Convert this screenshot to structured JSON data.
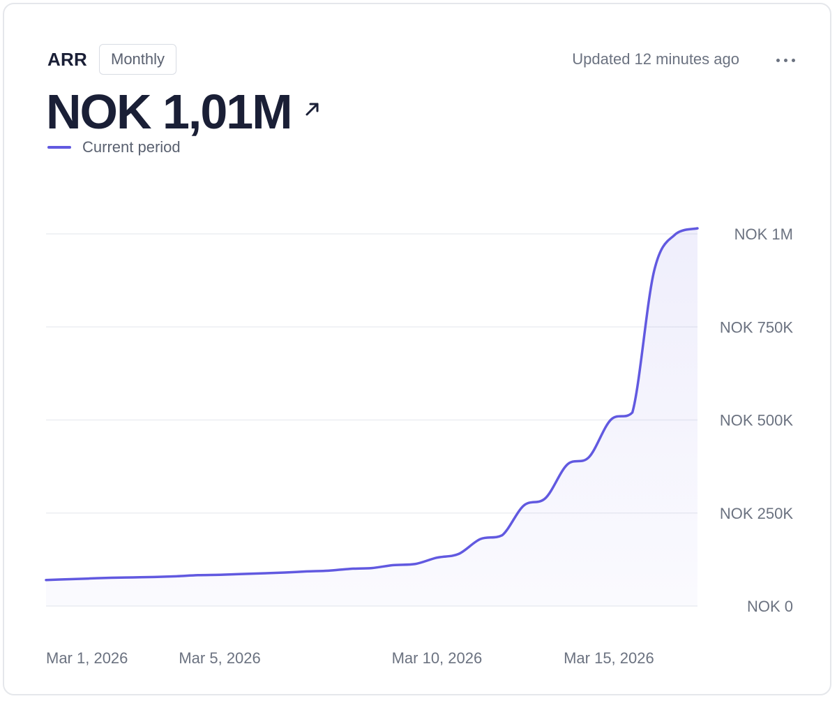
{
  "header": {
    "metric_name": "ARR",
    "period_label": "Monthly",
    "updated_text": "Updated 12 minutes ago",
    "headline_value": "NOK 1,01M",
    "trend_icon": "arrow-up-right-icon",
    "more_icon": "more-horizontal-icon"
  },
  "legend": {
    "label": "Current period",
    "color": "#6159e0"
  },
  "chart_data": {
    "type": "area",
    "series": [
      {
        "name": "Current period",
        "color": "#6159e0",
        "points": [
          [
            "2026-03-01",
            70000
          ],
          [
            "2026-03-01T12",
            72000
          ],
          [
            "2026-03-02",
            74000
          ],
          [
            "2026-03-02T12",
            76000
          ],
          [
            "2026-03-03",
            77000
          ],
          [
            "2026-03-03T12",
            78000
          ],
          [
            "2026-03-04",
            80000
          ],
          [
            "2026-03-04T12",
            83000
          ],
          [
            "2026-03-05",
            84000
          ],
          [
            "2026-03-05T12",
            86000
          ],
          [
            "2026-03-06",
            88000
          ],
          [
            "2026-03-06T12",
            90000
          ],
          [
            "2026-03-07",
            93000
          ],
          [
            "2026-03-07T12",
            95000
          ],
          [
            "2026-03-08",
            100000
          ],
          [
            "2026-03-08T12",
            102000
          ],
          [
            "2026-03-09",
            110000
          ],
          [
            "2026-03-09T12",
            113000
          ],
          [
            "2026-03-10",
            130000
          ],
          [
            "2026-03-10T12",
            140000
          ],
          [
            "2026-03-11",
            180000
          ],
          [
            "2026-03-11T12",
            190000
          ],
          [
            "2026-03-12",
            270000
          ],
          [
            "2026-03-12T12",
            290000
          ],
          [
            "2026-03-13",
            380000
          ],
          [
            "2026-03-13T12",
            400000
          ],
          [
            "2026-03-14",
            500000
          ],
          [
            "2026-03-14T12",
            520000
          ],
          [
            "2026-03-15",
            900000
          ],
          [
            "2026-03-15T12",
            1000000
          ],
          [
            "2026-03-16",
            1015000
          ]
        ]
      }
    ],
    "x_ticks": [
      {
        "date": "2026-03-01",
        "label": "Mar 1, 2026"
      },
      {
        "date": "2026-03-05",
        "label": "Mar 5, 2026"
      },
      {
        "date": "2026-03-10",
        "label": "Mar 10, 2026"
      },
      {
        "date": "2026-03-15",
        "label": "Mar 15, 2026"
      }
    ],
    "y_ticks": [
      {
        "value": 0,
        "label": "NOK 0"
      },
      {
        "value": 250000,
        "label": "NOK 250K"
      },
      {
        "value": 500000,
        "label": "NOK 500K"
      },
      {
        "value": 750000,
        "label": "NOK 750K"
      },
      {
        "value": 1000000,
        "label": "NOK 1M"
      }
    ],
    "xlim": [
      "2026-03-01",
      "2026-03-16"
    ],
    "ylim": [
      0,
      1000000
    ],
    "grid": true,
    "y_axis_position": "right",
    "legend_position": "top-left"
  }
}
